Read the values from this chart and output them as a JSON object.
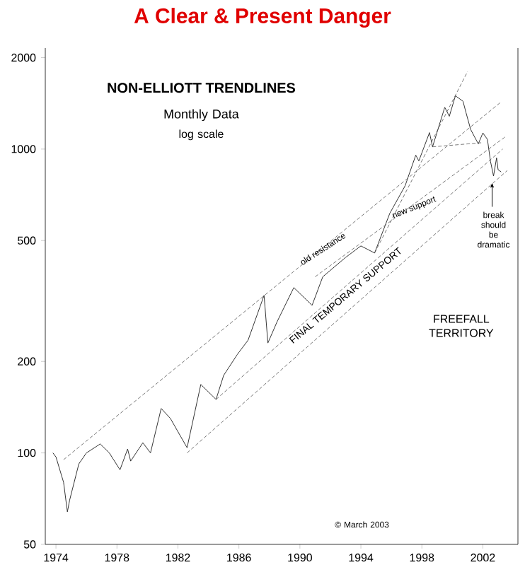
{
  "chart_data": {
    "type": "line",
    "title": "A Clear & Present Danger",
    "subtitle": "NON-ELLIOTT TRENDLINES",
    "log": "y",
    "xlim": [
      1973.3,
      2004.3
    ],
    "ylim": [
      50,
      2150
    ],
    "xticks": [
      1974,
      1978,
      1982,
      1986,
      1990,
      1994,
      1998,
      2002
    ],
    "yticks": [
      50,
      100,
      200,
      500,
      1000,
      2000
    ],
    "grid": false,
    "marker": "none",
    "series": [
      {
        "color": "#333333",
        "line_style": "solid",
        "x": [
          1973.8,
          1974.0,
          1974.5,
          1974.75,
          1974.9,
          1975.5,
          1976.0,
          1976.9,
          1977.5,
          1978.2,
          1978.7,
          1978.9,
          1979.7,
          1980.2,
          1980.9,
          1981.5,
          1982.6,
          1983.5,
          1984.5,
          1985.0,
          1985.9,
          1986.6,
          1987.65,
          1987.9,
          1988.5,
          1989.6,
          1990.8,
          1991.5,
          1993.0,
          1994.0,
          1994.9,
          1995.9,
          1996.9,
          1997.6,
          1997.8,
          1998.5,
          1998.7,
          1999.5,
          1999.8,
          2000.2,
          2000.7,
          2000.9,
          2001.2,
          2001.7,
          2002.0,
          2002.3,
          2002.5,
          2002.7,
          2002.9,
          2003.0,
          2003.2
        ],
        "values": [
          100,
          97,
          80,
          64,
          70,
          92,
          100,
          107,
          100,
          88,
          103,
          94,
          108,
          100,
          140,
          130,
          104,
          168,
          150,
          180,
          211,
          235,
          330,
          230,
          270,
          350,
          306,
          380,
          440,
          480,
          455,
          615,
          757,
          955,
          914,
          1133,
          1017,
          1372,
          1282,
          1498,
          1436,
          1315,
          1160,
          1040,
          1130,
          1076,
          911,
          815,
          936,
          855,
          841
        ]
      },
      {
        "color": "#555555",
        "line_style": "dashed",
        "x": [
          1974.5,
          2003.2
        ],
        "values": [
          95,
          1430
        ]
      },
      {
        "color": "#555555",
        "line_style": "dashed",
        "x": [
          1982.6,
          2003.6
        ],
        "values": [
          100,
          850
        ]
      },
      {
        "color": "#555555",
        "line_style": "dashed",
        "x": [
          1984.5,
          2003.3
        ],
        "values": [
          150,
          1000
        ]
      },
      {
        "color": "#555555",
        "line_style": "dashed",
        "x": [
          1991.0,
          2003.5
        ],
        "values": [
          380,
          1100
        ]
      },
      {
        "color": "#555555",
        "line_style": "dashed",
        "x": [
          1994.9,
          2001.0
        ],
        "values": [
          455,
          1800
        ]
      },
      {
        "color": "#555555",
        "line_style": "dashed",
        "x": [
          1998.7,
          2002.0
        ],
        "values": [
          1017,
          1050
        ]
      }
    ],
    "annotations": [
      "Monthly Data",
      "log scale",
      "FREEFALL TERRITORY",
      "© March 2003",
      {
        "text": "old resistance",
        "x": 1991.5,
        "y": 470
      },
      {
        "text": "new support",
        "x": 1997.5,
        "y": 640
      },
      {
        "text": "FINAL TEMPORARY SUPPORT",
        "x": 1993.0,
        "y": 330
      },
      {
        "text": "break should be dramatic",
        "x": 2002.7,
        "y": 800
      }
    ]
  }
}
